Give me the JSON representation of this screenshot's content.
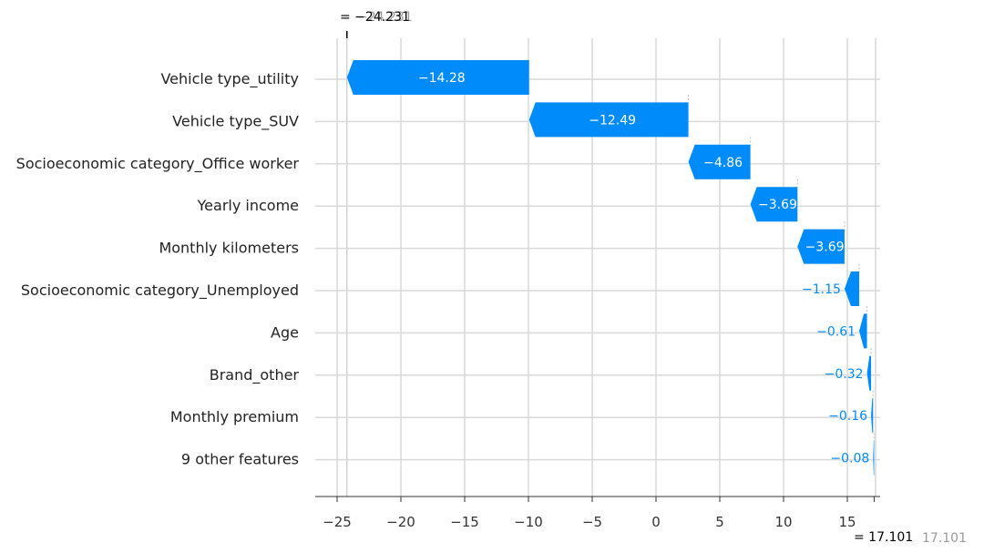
{
  "chart_data": {
    "type": "waterfall",
    "title": "",
    "xlabel": "",
    "ylabel": "",
    "xlim": [
      -26.5,
      17.5
    ],
    "xticks": [
      -25,
      -20,
      -15,
      -10,
      -5,
      0,
      5,
      10,
      15
    ],
    "xtick_labels": [
      "−25",
      "−20",
      "−15",
      "−10",
      "−5",
      "0",
      "5",
      "10",
      "15"
    ],
    "base_value": 17.101,
    "final_value": -24.231,
    "top_annotation": "= −24.231",
    "top_annotation_ghost": "−24.231",
    "bottom_annotation": "= 17.101",
    "bottom_annotation_ghost": "17.101",
    "features": [
      {
        "name": "Vehicle type_utility",
        "value": -14.28,
        "label": "−14.28"
      },
      {
        "name": "Vehicle type_SUV",
        "value": -12.49,
        "label": "−12.49"
      },
      {
        "name": "Socioeconomic category_Office worker",
        "value": -4.86,
        "label": "−4.86"
      },
      {
        "name": "Yearly income",
        "value": -3.69,
        "label": "−3.69"
      },
      {
        "name": "Monthly kilometers",
        "value": -3.69,
        "label": "−3.69"
      },
      {
        "name": "Socioeconomic category_Unemployed",
        "value": -1.15,
        "label": "−1.15"
      },
      {
        "name": "Age",
        "value": -0.61,
        "label": "−0.61"
      },
      {
        "name": "Brand_other",
        "value": -0.32,
        "label": "−0.32"
      },
      {
        "name": "Monthly premium",
        "value": -0.16,
        "label": "−0.16"
      },
      {
        "name": "9 other features",
        "value": -0.08,
        "label": "−0.08"
      }
    ],
    "colors": {
      "negative": "#008bfb",
      "grid": "#d9d9d9",
      "axis": "#333333",
      "ghost_text": "#999999"
    }
  }
}
